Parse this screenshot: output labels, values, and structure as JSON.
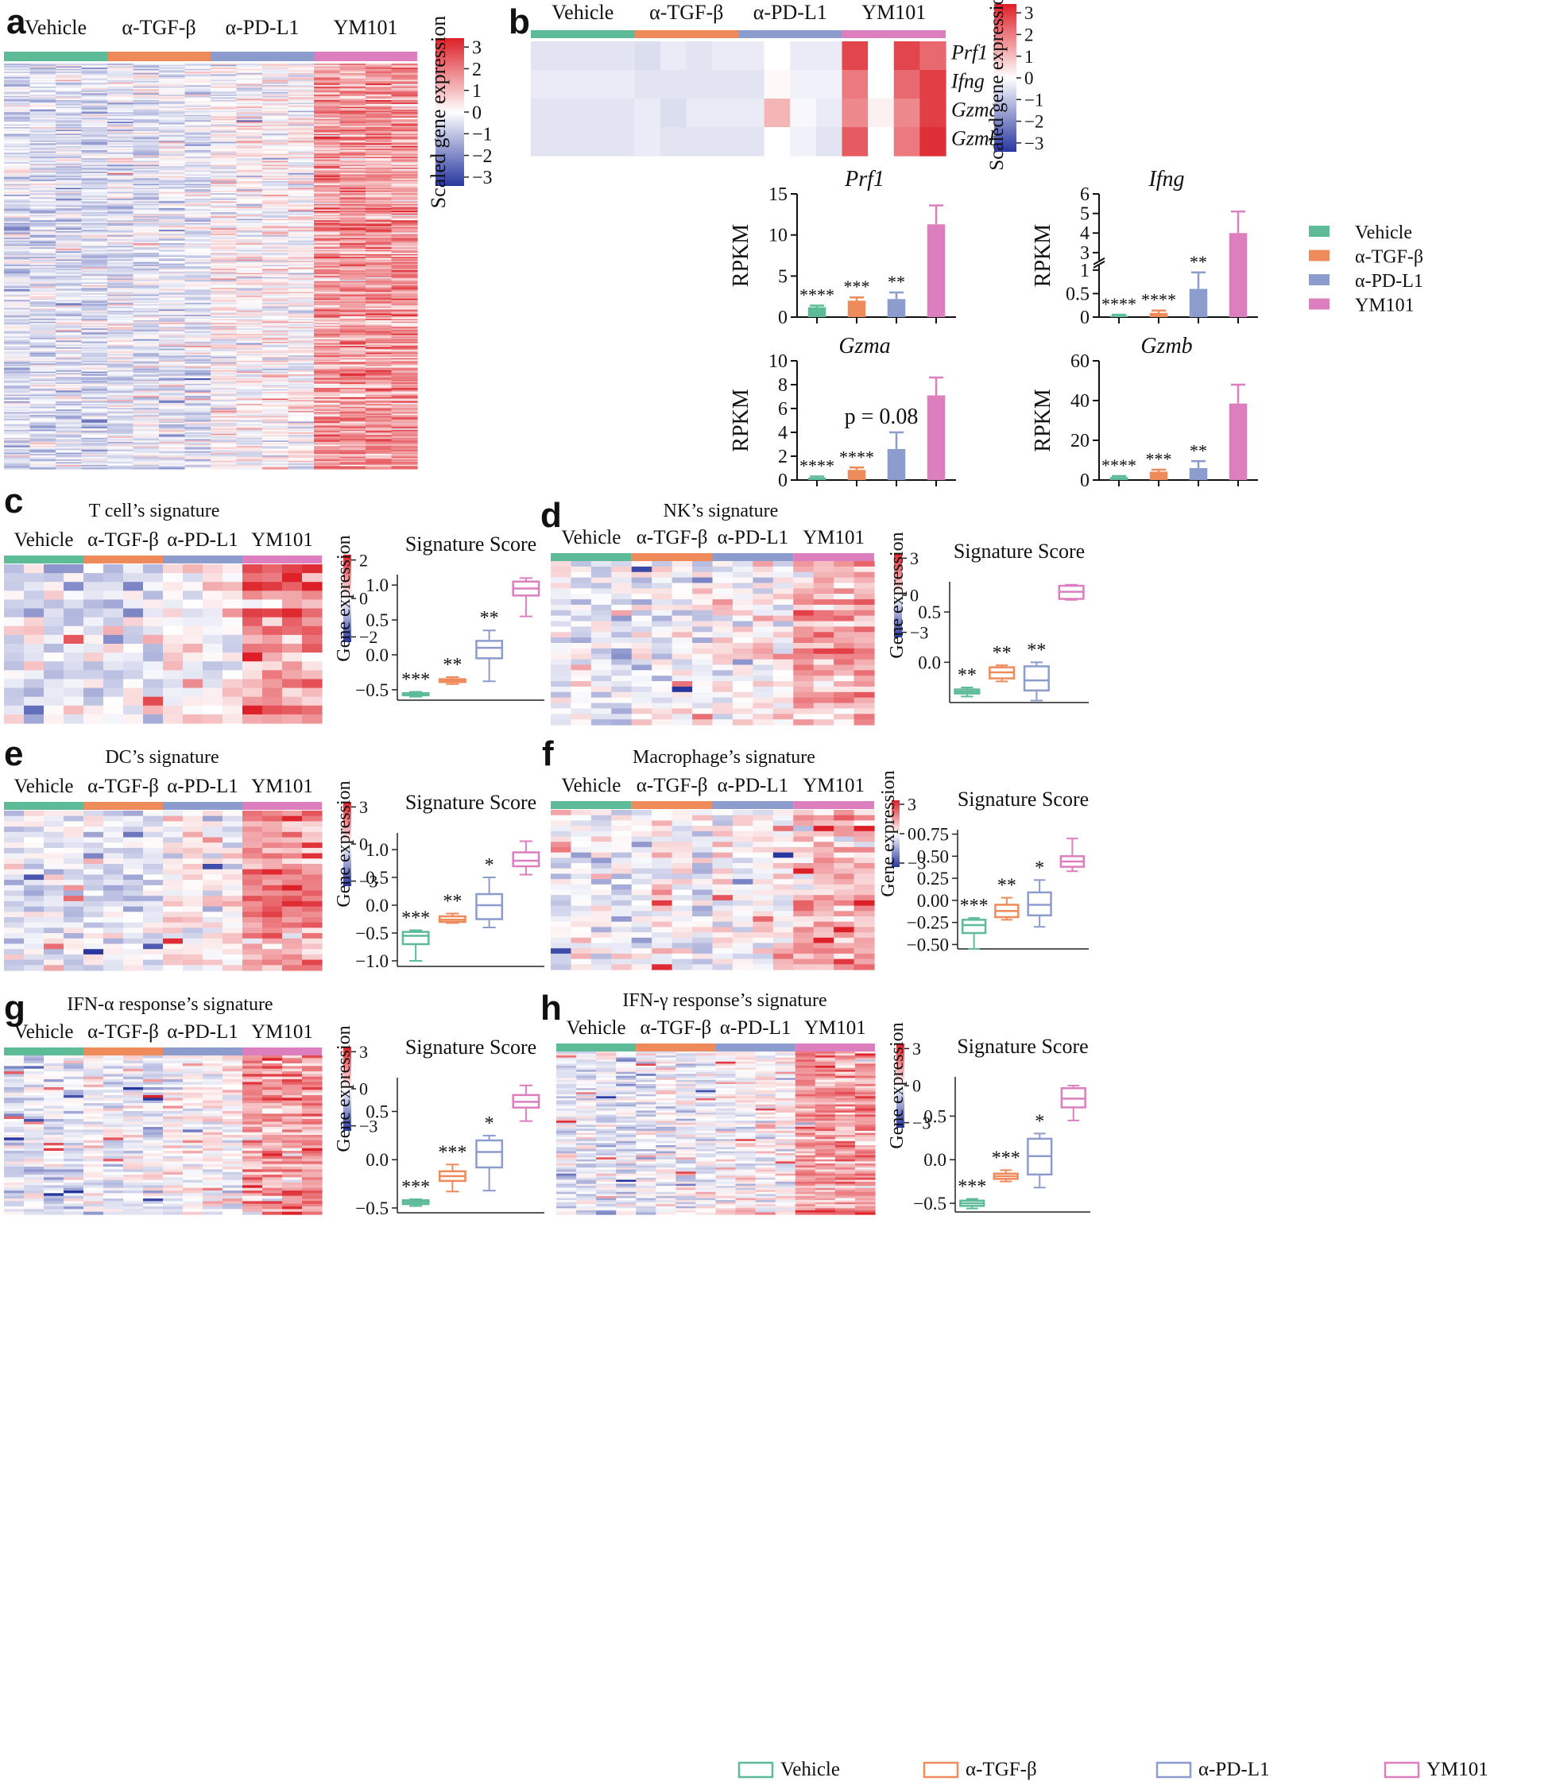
{
  "groups": [
    "Vehicle",
    "α-TGF-β",
    "α-PD-L1",
    "YM101"
  ],
  "colors": {
    "Vehicle": "#5dbb98",
    "α-TGF-β": "#ef8a5b",
    "α-PD-L1": "#8c9ccd",
    "YM101": "#dd7fbf"
  },
  "panel_labels": [
    "a",
    "b",
    "c",
    "d",
    "e",
    "f",
    "g",
    "h"
  ],
  "colorbar": {
    "label_main": "Scaled gene expression",
    "label_small": "Gene expression",
    "ticks3": [
      "3",
      "2",
      "1",
      "0",
      "−1",
      "−2",
      "−3"
    ],
    "ticks2": [
      "2",
      "0",
      "−2"
    ],
    "ticks3s": [
      "3",
      "0",
      "−3"
    ]
  },
  "genes": [
    "Prf1",
    "Ifng",
    "Gzma",
    "Gzmb"
  ],
  "legend": {
    "labels": [
      "Vehicle",
      "α-TGF-β",
      "α-PD-L1",
      "YM101"
    ]
  },
  "signature_titles": {
    "c": "T cell’s signature",
    "d": "NK’s signature",
    "e": "DC’s signature",
    "f": "Macrophage’s signature",
    "g": "IFN-α response’s signature",
    "h": "IFN-γ response’s signature"
  },
  "score_title": "Signature Score",
  "ylabel_rpkm": "RPKM",
  "annotation_p": "p = 0.08",
  "chart_data": [
    {
      "panel": "b-prf1",
      "type": "bar",
      "title": "Prf1",
      "ylabel": "RPKM",
      "categories": [
        "Vehicle",
        "α-TGF-β",
        "α-PD-L1",
        "YM101"
      ],
      "values": [
        1.2,
        2.0,
        2.2,
        11.3
      ],
      "errors": [
        0.2,
        0.4,
        0.8,
        2.3
      ],
      "sig": [
        "****",
        "***",
        "**",
        ""
      ],
      "ylim": [
        0,
        15
      ],
      "yticks": [
        0,
        5,
        10,
        15
      ]
    },
    {
      "panel": "b-ifng",
      "type": "bar",
      "title": "Ifng",
      "ylabel": "RPKM",
      "categories": [
        "Vehicle",
        "α-TGF-β",
        "α-PD-L1",
        "YM101"
      ],
      "values": [
        0.03,
        0.09,
        0.6,
        4.0
      ],
      "errors": [
        0.02,
        0.05,
        0.35,
        1.1
      ],
      "sig": [
        "****",
        "****",
        "**",
        ""
      ],
      "ylim": [
        0,
        6
      ],
      "yticks": [
        0,
        0.5,
        1.0,
        3,
        4,
        5,
        6
      ],
      "axis_break": [
        1.1,
        2.6
      ]
    },
    {
      "panel": "b-gzma",
      "type": "bar",
      "title": "Gzma",
      "ylabel": "RPKM",
      "categories": [
        "Vehicle",
        "α-TGF-β",
        "α-PD-L1",
        "YM101"
      ],
      "values": [
        0.2,
        0.85,
        2.6,
        7.1
      ],
      "errors": [
        0.1,
        0.2,
        1.4,
        1.5
      ],
      "sig": [
        "****",
        "****",
        "",
        ""
      ],
      "ylim": [
        0,
        10
      ],
      "yticks": [
        0,
        2,
        4,
        6,
        8,
        10
      ]
    },
    {
      "panel": "b-gzmb",
      "type": "bar",
      "title": "Gzmb",
      "ylabel": "RPKM",
      "categories": [
        "Vehicle",
        "α-TGF-β",
        "α-PD-L1",
        "YM101"
      ],
      "values": [
        1.5,
        4.2,
        6.0,
        38.5
      ],
      "errors": [
        0.5,
        1.0,
        3.5,
        9.5
      ],
      "sig": [
        "****",
        "***",
        "**",
        ""
      ],
      "ylim": [
        0,
        60
      ],
      "yticks": [
        0,
        20,
        40,
        60
      ]
    },
    {
      "panel": "c",
      "type": "box",
      "title": "Signature Score",
      "categories": [
        "Vehicle",
        "α-TGF-β",
        "α-PD-L1",
        "YM101"
      ],
      "ylim": [
        -0.65,
        1.15
      ],
      "yticks": [
        -0.5,
        0.0,
        0.5,
        1.0
      ],
      "ticklabels": [
        "−0.5",
        "0.0",
        "0.5",
        "1.0"
      ],
      "sig": [
        "***",
        "**",
        "**",
        ""
      ],
      "boxes": [
        [
          -0.6,
          -0.58,
          -0.56,
          -0.55,
          -0.53
        ],
        [
          -0.42,
          -0.39,
          -0.37,
          -0.35,
          -0.32
        ],
        [
          -0.38,
          -0.05,
          0.1,
          0.2,
          0.35
        ],
        [
          0.55,
          0.85,
          0.95,
          1.05,
          1.1
        ]
      ]
    },
    {
      "panel": "d",
      "type": "box",
      "title": "Signature Score",
      "categories": [
        "Vehicle",
        "α-TGF-β",
        "α-PD-L1",
        "YM101"
      ],
      "ylim": [
        -0.4,
        0.8
      ],
      "yticks": [
        0.0,
        0.5
      ],
      "ticklabels": [
        "0.0",
        "0.5"
      ],
      "sig": [
        "**",
        "**",
        "**",
        ""
      ],
      "boxes": [
        [
          -0.34,
          -0.31,
          -0.29,
          -0.27,
          -0.25
        ],
        [
          -0.19,
          -0.16,
          -0.1,
          -0.05,
          -0.03
        ],
        [
          -0.38,
          -0.28,
          -0.18,
          -0.04,
          0.0
        ],
        [
          0.62,
          0.63,
          0.7,
          0.76,
          0.77
        ]
      ]
    },
    {
      "panel": "e",
      "type": "box",
      "title": "Signature Score",
      "categories": [
        "Vehicle",
        "α-TGF-β",
        "α-PD-L1",
        "YM101"
      ],
      "ylim": [
        -1.1,
        1.3
      ],
      "yticks": [
        -1.0,
        -0.5,
        0.0,
        0.5,
        1.0
      ],
      "ticklabels": [
        "−1.0",
        "−0.5",
        "0.0",
        "0.5",
        "1.0"
      ],
      "sig": [
        "***",
        "**",
        "*",
        ""
      ],
      "boxes": [
        [
          -1.0,
          -0.7,
          -0.55,
          -0.48,
          -0.45
        ],
        [
          -0.32,
          -0.3,
          -0.26,
          -0.2,
          -0.15
        ],
        [
          -0.4,
          -0.25,
          0.0,
          0.2,
          0.5
        ],
        [
          0.55,
          0.7,
          0.8,
          0.95,
          1.15
        ]
      ]
    },
    {
      "panel": "f",
      "type": "box",
      "title": "Signature Score",
      "categories": [
        "Vehicle",
        "α-TGF-β",
        "α-PD-L1",
        "YM101"
      ],
      "ylim": [
        -0.55,
        0.8
      ],
      "yticks": [
        -0.5,
        -0.25,
        0.0,
        0.25,
        0.5,
        0.75
      ],
      "ticklabels": [
        "−0.50",
        "−0.25",
        "0.00",
        "0.25",
        "0.50",
        "0.75"
      ],
      "sig": [
        "***",
        "**",
        "*",
        ""
      ],
      "boxes": [
        [
          -0.55,
          -0.37,
          -0.28,
          -0.22,
          -0.2
        ],
        [
          -0.22,
          -0.19,
          -0.12,
          -0.05,
          0.03
        ],
        [
          -0.3,
          -0.17,
          -0.05,
          0.09,
          0.23
        ],
        [
          0.33,
          0.38,
          0.44,
          0.5,
          0.7
        ]
      ]
    },
    {
      "panel": "g",
      "type": "box",
      "title": "Signature Score",
      "categories": [
        "Vehicle",
        "α-TGF-β",
        "α-PD-L1",
        "YM101"
      ],
      "ylim": [
        -0.55,
        0.85
      ],
      "yticks": [
        -0.5,
        0.0,
        0.5
      ],
      "ticklabels": [
        "−0.5",
        "0.0",
        "0.5"
      ],
      "sig": [
        "***",
        "***",
        "*",
        ""
      ],
      "boxes": [
        [
          -0.48,
          -0.46,
          -0.44,
          -0.42,
          -0.41
        ],
        [
          -0.33,
          -0.22,
          -0.17,
          -0.12,
          -0.05
        ],
        [
          -0.32,
          -0.08,
          0.08,
          0.2,
          0.25
        ],
        [
          0.4,
          0.54,
          0.6,
          0.67,
          0.77
        ]
      ]
    },
    {
      "panel": "h",
      "type": "box",
      "title": "Signature Score",
      "categories": [
        "Vehicle",
        "α-TGF-β",
        "α-PD-L1",
        "YM101"
      ],
      "ylim": [
        -0.6,
        0.95
      ],
      "yticks": [
        -0.5,
        0.0,
        0.5
      ],
      "ticklabels": [
        "−0.5",
        "0.0",
        "0.5"
      ],
      "sig": [
        "***",
        "***",
        "*",
        ""
      ],
      "boxes": [
        [
          -0.56,
          -0.53,
          -0.5,
          -0.47,
          -0.45
        ],
        [
          -0.25,
          -0.22,
          -0.19,
          -0.16,
          -0.12
        ],
        [
          -0.32,
          -0.17,
          0.04,
          0.24,
          0.3
        ],
        [
          0.45,
          0.6,
          0.7,
          0.82,
          0.85
        ]
      ]
    },
    {
      "panel": "a-b-c-d-e-f-g-h",
      "type": "heatmap",
      "description_units": "scaled gene expression z-score, range -3 to 3",
      "groups": [
        "Vehicle",
        "α-TGF-β",
        "α-PD-L1",
        "YM101"
      ],
      "samples_per_group": 4,
      "group_mean_trend": [
        -0.5,
        -0.4,
        0.1,
        1.3
      ],
      "heatmap_b_values": {
        "Prf1": [
          -0.4,
          -0.4,
          -0.4,
          -0.4,
          -0.5,
          -0.3,
          -0.4,
          -0.3,
          -0.3,
          0.0,
          -0.3,
          -0.3,
          2.5,
          0.0,
          2.5,
          2.0
        ],
        "Ifng": [
          -0.3,
          -0.3,
          -0.3,
          -0.3,
          -0.4,
          -0.4,
          -0.4,
          -0.4,
          -0.4,
          0.1,
          -0.2,
          -0.2,
          1.8,
          0.0,
          2.0,
          2.6
        ],
        "Gzma": [
          -0.4,
          -0.4,
          -0.4,
          -0.4,
          -0.3,
          -0.5,
          -0.3,
          -0.3,
          -0.3,
          1.0,
          -0.1,
          -0.3,
          1.6,
          0.2,
          1.6,
          2.6
        ],
        "Gzmb": [
          -0.4,
          -0.4,
          -0.4,
          -0.4,
          -0.3,
          -0.4,
          -0.4,
          -0.4,
          -0.4,
          0.0,
          -0.2,
          -0.4,
          2.2,
          0.0,
          1.8,
          2.8
        ]
      }
    }
  ]
}
